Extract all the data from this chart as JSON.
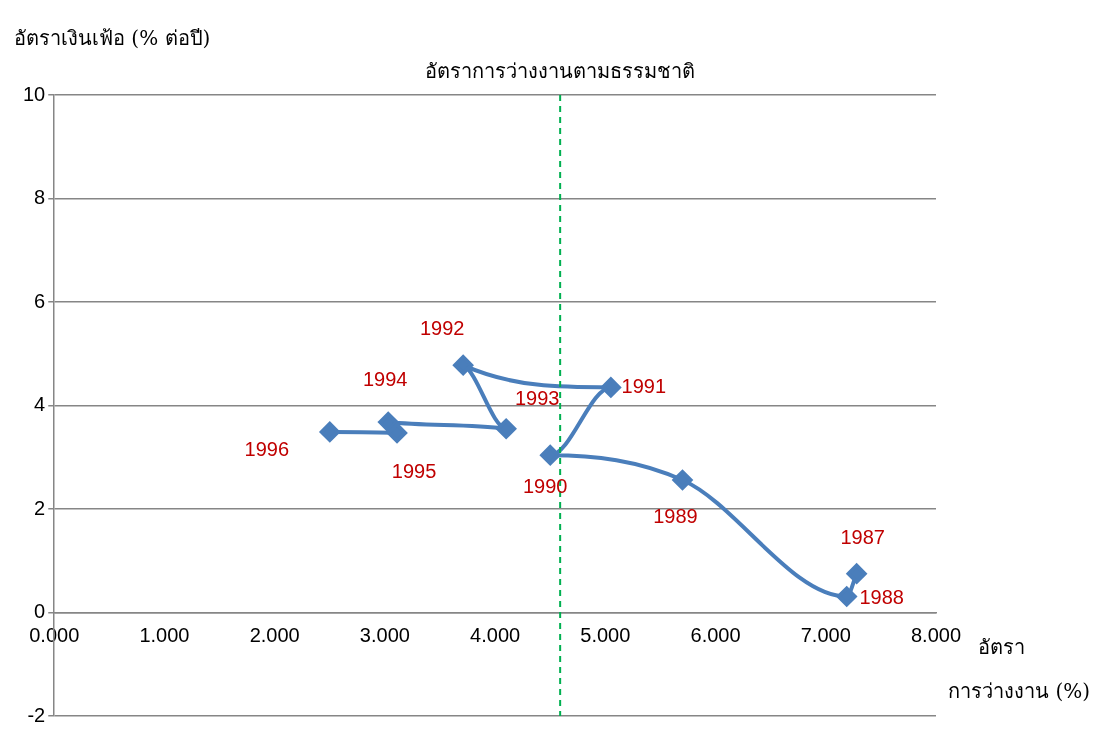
{
  "chart_data": {
    "type": "line",
    "xlabel": "อัตรา การว่างงาน (%)",
    "ylabel": "อัตราเงินเฟ้อ (% ต่อปี)",
    "x": [
      7.28,
      7.19,
      5.7,
      4.5,
      5.05,
      3.71,
      4.1,
      3.03,
      3.11,
      2.5
    ],
    "series": [
      {
        "color": "#4a7ebb",
        "values": [
          0.75,
          0.31,
          2.56,
          3.04,
          4.35,
          4.78,
          3.55,
          3.68,
          3.47,
          3.49
        ]
      }
    ],
    "xlim": [
      0,
      8
    ],
    "xticks": [
      {
        "value": 0,
        "label": "0.000"
      },
      {
        "value": 1,
        "label": "1.000"
      },
      {
        "value": 2,
        "label": "2.000"
      },
      {
        "value": 3,
        "label": "3.000"
      },
      {
        "value": 4,
        "label": "4.000"
      },
      {
        "value": 5,
        "label": "5.000"
      },
      {
        "value": 6,
        "label": "6.000"
      },
      {
        "value": 7,
        "label": "7.000"
      },
      {
        "value": 8,
        "label": "8.000"
      }
    ],
    "ylim": [
      -2,
      10
    ],
    "yticks": [
      -2,
      0,
      2,
      4,
      6,
      8,
      10
    ],
    "grid": "y",
    "legend": false,
    "marker": "diamond",
    "line_style": "solid",
    "ref_lines": [
      {
        "axis": "x",
        "value": 4.59,
        "label": "อัตราการว่างงานตามธรรมชาติ",
        "color": "#00b050",
        "line_style": "dashed"
      }
    ],
    "annotations": [
      {
        "text": "1987",
        "x": 7.28,
        "y": 0.75
      },
      {
        "text": "1988",
        "x": 7.19,
        "y": 0.31
      },
      {
        "text": "1989",
        "x": 5.7,
        "y": 2.56
      },
      {
        "text": "1990",
        "x": 4.5,
        "y": 3.04
      },
      {
        "text": "1991",
        "x": 5.05,
        "y": 4.35
      },
      {
        "text": "1992",
        "x": 3.71,
        "y": 4.78
      },
      {
        "text": "1993",
        "x": 4.1,
        "y": 3.55
      },
      {
        "text": "1994",
        "x": 3.03,
        "y": 3.68
      },
      {
        "text": "1995",
        "x": 3.11,
        "y": 3.47
      },
      {
        "text": "1996",
        "x": 2.5,
        "y": 3.49
      }
    ]
  }
}
